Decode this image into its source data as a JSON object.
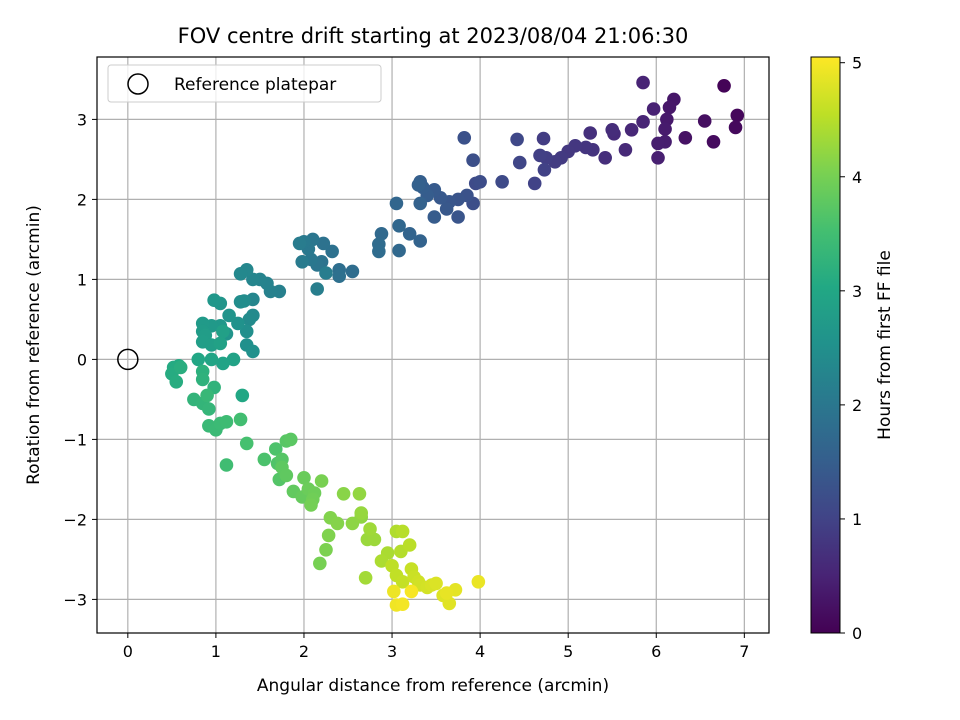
{
  "chart_data": {
    "type": "scatter",
    "title": "FOV centre drift starting at 2023/08/04 21:06:30",
    "xlabel": "Angular distance from reference (arcmin)",
    "ylabel": "Rotation from reference (arcmin)",
    "xlim": [
      -0.35,
      7.28
    ],
    "ylim": [
      -3.42,
      3.78
    ],
    "x_ticks": [
      0,
      1,
      2,
      3,
      4,
      5,
      6,
      7
    ],
    "y_ticks": [
      -3,
      -2,
      -1,
      0,
      1,
      2,
      3
    ],
    "grid": true,
    "legend": {
      "placement": "top-left",
      "entries": [
        "Reference platepar"
      ]
    },
    "reference_point": {
      "x": 0,
      "y": 0
    },
    "colorbar": {
      "label": "Hours from first FF file",
      "colormap": "viridis",
      "range": [
        0,
        5.05
      ],
      "ticks": [
        0,
        1,
        2,
        3,
        4,
        5
      ]
    },
    "points": [
      [
        6.77,
        3.42,
        0.05
      ],
      [
        6.92,
        3.05,
        0.1
      ],
      [
        6.9,
        2.9,
        0.12
      ],
      [
        6.65,
        2.72,
        0.15
      ],
      [
        6.55,
        2.98,
        0.2
      ],
      [
        6.33,
        2.77,
        0.25
      ],
      [
        6.2,
        3.25,
        0.3
      ],
      [
        6.15,
        3.15,
        0.32
      ],
      [
        6.12,
        3.0,
        0.35
      ],
      [
        6.1,
        2.88,
        0.38
      ],
      [
        6.1,
        2.72,
        0.4
      ],
      [
        6.02,
        2.7,
        0.42
      ],
      [
        6.02,
        2.52,
        0.45
      ],
      [
        5.97,
        3.13,
        0.48
      ],
      [
        5.85,
        3.46,
        0.5
      ],
      [
        5.85,
        2.97,
        0.52
      ],
      [
        5.72,
        2.87,
        0.55
      ],
      [
        5.65,
        2.62,
        0.6
      ],
      [
        5.52,
        2.82,
        0.62
      ],
      [
        5.5,
        2.87,
        0.65
      ],
      [
        5.42,
        2.52,
        0.68
      ],
      [
        5.25,
        2.83,
        0.7
      ],
      [
        5.28,
        2.62,
        0.75
      ],
      [
        5.2,
        2.65,
        0.78
      ],
      [
        5.08,
        2.67,
        0.8
      ],
      [
        5.0,
        2.6,
        0.82
      ],
      [
        4.92,
        2.52,
        0.85
      ],
      [
        4.85,
        2.47,
        0.88
      ],
      [
        4.72,
        2.76,
        0.9
      ],
      [
        4.75,
        2.52,
        0.92
      ],
      [
        4.68,
        2.55,
        0.95
      ],
      [
        4.73,
        2.37,
        0.98
      ],
      [
        4.62,
        2.2,
        1.0
      ],
      [
        4.45,
        2.46,
        1.05
      ],
      [
        4.42,
        2.75,
        1.08
      ],
      [
        4.25,
        2.22,
        1.12
      ],
      [
        3.95,
        2.2,
        1.15
      ],
      [
        4.0,
        2.22,
        1.18
      ],
      [
        3.92,
        1.95,
        1.2
      ],
      [
        3.92,
        2.49,
        1.22
      ],
      [
        3.82,
        2.77,
        1.25
      ],
      [
        3.85,
        2.05,
        1.28
      ],
      [
        3.75,
        2.0,
        1.3
      ],
      [
        3.75,
        1.78,
        1.32
      ],
      [
        3.65,
        1.97,
        1.35
      ],
      [
        3.62,
        1.88,
        1.38
      ],
      [
        3.55,
        2.02,
        1.4
      ],
      [
        3.48,
        2.12,
        1.42
      ],
      [
        3.48,
        1.78,
        1.45
      ],
      [
        3.4,
        2.05,
        1.48
      ],
      [
        3.35,
        2.15,
        1.5
      ],
      [
        3.32,
        2.22,
        1.52
      ],
      [
        3.3,
        2.18,
        1.55
      ],
      [
        3.32,
        1.95,
        1.58
      ],
      [
        3.32,
        1.48,
        1.6
      ],
      [
        3.2,
        1.57,
        1.62
      ],
      [
        3.05,
        1.95,
        1.65
      ],
      [
        3.08,
        1.67,
        1.68
      ],
      [
        3.08,
        1.36,
        1.7
      ],
      [
        2.88,
        1.57,
        1.72
      ],
      [
        2.85,
        1.44,
        1.75
      ],
      [
        2.85,
        1.35,
        1.78
      ],
      [
        2.55,
        1.1,
        1.8
      ],
      [
        2.4,
        1.12,
        1.82
      ],
      [
        2.4,
        1.04,
        1.85
      ],
      [
        2.32,
        1.35,
        1.88
      ],
      [
        2.22,
        1.45,
        1.9
      ],
      [
        2.2,
        1.22,
        1.92
      ],
      [
        2.15,
        1.18,
        1.95
      ],
      [
        2.1,
        1.5,
        1.98
      ],
      [
        2.08,
        1.25,
        2.0
      ],
      [
        2.05,
        1.38,
        2.02
      ],
      [
        2.0,
        1.47,
        2.05
      ],
      [
        1.98,
        1.22,
        2.08
      ],
      [
        1.95,
        1.45,
        2.1
      ],
      [
        2.25,
        1.08,
        2.12
      ],
      [
        2.15,
        0.88,
        2.15
      ],
      [
        1.72,
        0.85,
        2.18
      ],
      [
        1.62,
        0.85,
        2.2
      ],
      [
        1.58,
        0.95,
        2.22
      ],
      [
        1.5,
        1.0,
        2.25
      ],
      [
        1.42,
        1.0,
        2.28
      ],
      [
        1.42,
        0.75,
        2.3
      ],
      [
        1.35,
        1.12,
        2.32
      ],
      [
        1.28,
        1.07,
        2.35
      ],
      [
        1.42,
        0.55,
        2.38
      ],
      [
        1.38,
        0.5,
        2.4
      ],
      [
        1.32,
        0.73,
        2.42
      ],
      [
        1.28,
        0.72,
        2.45
      ],
      [
        1.35,
        0.35,
        2.48
      ],
      [
        1.35,
        0.18,
        2.5
      ],
      [
        1.42,
        0.1,
        2.52
      ],
      [
        1.25,
        0.45,
        2.55
      ],
      [
        1.15,
        0.55,
        2.58
      ],
      [
        1.12,
        0.32,
        2.6
      ],
      [
        1.05,
        0.7,
        2.62
      ],
      [
        0.98,
        0.74,
        2.65
      ],
      [
        1.05,
        0.42,
        2.68
      ],
      [
        0.95,
        0.42,
        2.7
      ],
      [
        0.85,
        0.45,
        2.72
      ],
      [
        0.85,
        0.35,
        2.75
      ],
      [
        0.88,
        0.3,
        2.78
      ],
      [
        0.85,
        0.22,
        2.8
      ],
      [
        0.95,
        0.18,
        2.82
      ],
      [
        1.08,
        0.35,
        2.85
      ],
      [
        1.05,
        0.2,
        2.88
      ],
      [
        1.2,
        0.0,
        2.9
      ],
      [
        1.08,
        -0.05,
        2.92
      ],
      [
        0.95,
        0.0,
        2.95
      ],
      [
        0.8,
        0.0,
        2.98
      ],
      [
        1.3,
        -0.45,
        3.0
      ],
      [
        0.58,
        -0.08,
        3.05
      ],
      [
        0.52,
        -0.1,
        3.08
      ],
      [
        0.5,
        -0.18,
        3.1
      ],
      [
        0.55,
        -0.28,
        3.12
      ],
      [
        0.6,
        -0.1,
        3.15
      ],
      [
        0.85,
        -0.15,
        3.2
      ],
      [
        0.85,
        -0.25,
        3.22
      ],
      [
        0.98,
        -0.35,
        3.25
      ],
      [
        0.75,
        -0.5,
        3.28
      ],
      [
        0.85,
        -0.55,
        3.3
      ],
      [
        0.92,
        -0.62,
        3.32
      ],
      [
        0.9,
        -0.45,
        3.35
      ],
      [
        0.92,
        -0.83,
        3.38
      ],
      [
        1.0,
        -0.88,
        3.4
      ],
      [
        1.05,
        -0.8,
        3.42
      ],
      [
        1.12,
        -0.78,
        3.45
      ],
      [
        1.12,
        -1.32,
        3.48
      ],
      [
        1.28,
        -0.75,
        3.5
      ],
      [
        1.35,
        -1.05,
        3.55
      ],
      [
        1.55,
        -1.25,
        3.6
      ],
      [
        1.68,
        -1.12,
        3.62
      ],
      [
        1.7,
        -1.3,
        3.65
      ],
      [
        1.72,
        -1.5,
        3.68
      ],
      [
        1.75,
        -1.25,
        3.7
      ],
      [
        1.8,
        -1.02,
        3.72
      ],
      [
        1.85,
        -1.0,
        3.75
      ],
      [
        1.75,
        -1.35,
        3.78
      ],
      [
        1.8,
        -1.45,
        3.8
      ],
      [
        1.88,
        -1.65,
        3.82
      ],
      [
        1.98,
        -1.72,
        3.85
      ],
      [
        2.0,
        -1.48,
        3.88
      ],
      [
        2.05,
        -1.62,
        3.9
      ],
      [
        2.12,
        -1.67,
        3.92
      ],
      [
        2.1,
        -1.75,
        3.95
      ],
      [
        2.08,
        -1.82,
        3.98
      ],
      [
        2.18,
        -2.55,
        4.0
      ],
      [
        2.2,
        -1.52,
        4.02
      ],
      [
        2.25,
        -2.38,
        4.05
      ],
      [
        2.28,
        -2.2,
        4.08
      ],
      [
        2.3,
        -1.98,
        4.1
      ],
      [
        2.38,
        -2.05,
        4.12
      ],
      [
        2.45,
        -1.68,
        4.15
      ],
      [
        2.55,
        -2.05,
        4.18
      ],
      [
        2.65,
        -1.97,
        4.2
      ],
      [
        2.63,
        -1.68,
        4.22
      ],
      [
        2.65,
        -1.92,
        4.25
      ],
      [
        2.72,
        -2.25,
        4.28
      ],
      [
        2.8,
        -2.25,
        4.3
      ],
      [
        2.75,
        -2.12,
        4.32
      ],
      [
        2.7,
        -2.73,
        4.35
      ],
      [
        2.95,
        -2.42,
        4.4
      ],
      [
        2.88,
        -2.52,
        4.42
      ],
      [
        3.05,
        -2.15,
        4.45
      ],
      [
        3.1,
        -2.4,
        4.48
      ],
      [
        3.12,
        -2.15,
        4.5
      ],
      [
        3.2,
        -2.32,
        4.52
      ],
      [
        3.0,
        -2.58,
        4.55
      ],
      [
        3.05,
        -2.7,
        4.58
      ],
      [
        3.12,
        -2.78,
        4.6
      ],
      [
        3.22,
        -2.62,
        4.62
      ],
      [
        3.25,
        -2.72,
        4.65
      ],
      [
        3.3,
        -2.78,
        4.68
      ],
      [
        3.32,
        -2.82,
        4.7
      ],
      [
        3.4,
        -2.85,
        4.72
      ],
      [
        3.45,
        -2.82,
        4.75
      ],
      [
        3.5,
        -2.8,
        4.78
      ],
      [
        3.58,
        -2.95,
        4.8
      ],
      [
        3.65,
        -3.05,
        4.82
      ],
      [
        3.72,
        -2.88,
        4.85
      ],
      [
        3.62,
        -2.92,
        4.88
      ],
      [
        3.98,
        -2.78,
        4.9
      ],
      [
        3.02,
        -2.9,
        4.92
      ],
      [
        3.05,
        -3.07,
        4.95
      ],
      [
        3.12,
        -3.06,
        4.97
      ],
      [
        3.22,
        -2.9,
        5.0
      ]
    ]
  }
}
